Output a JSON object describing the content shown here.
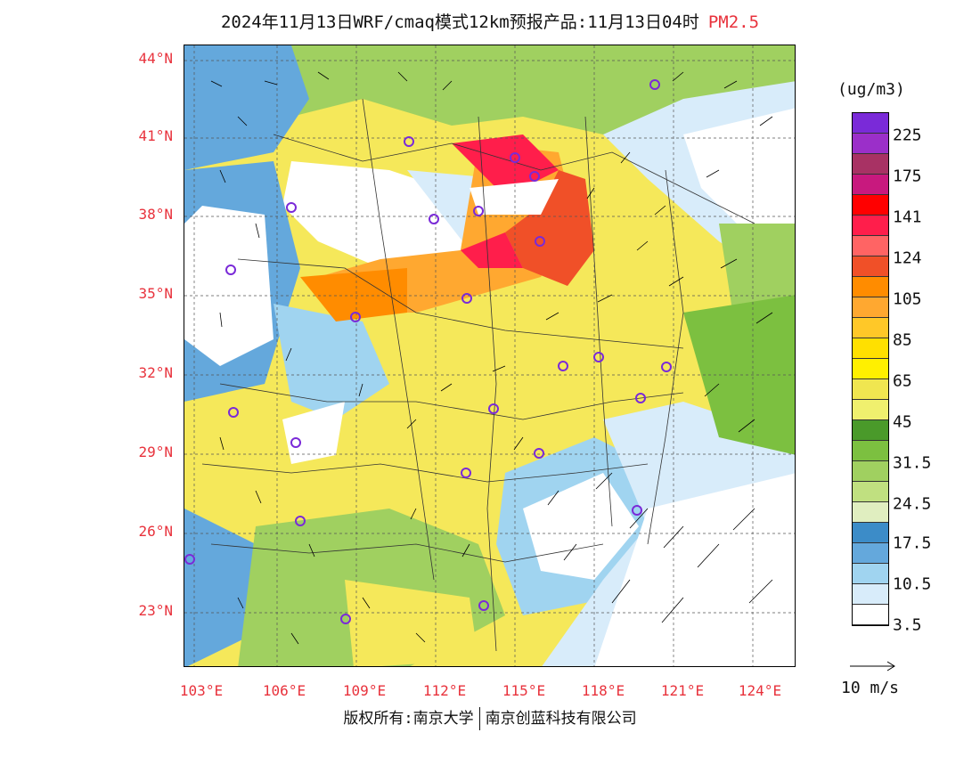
{
  "title": {
    "main": "2024年11月13日WRF/cmaq模式12km预报产品:11月13日04时",
    "pollutant": "PM2.5"
  },
  "axes": {
    "lat_labels": [
      "44°N",
      "41°N",
      "38°N",
      "35°N",
      "32°N",
      "29°N",
      "26°N",
      "23°N"
    ],
    "lon_labels": [
      "103°E",
      "106°E",
      "109°E",
      "112°E",
      "115°E",
      "118°E",
      "121°E",
      "124°E"
    ]
  },
  "legend": {
    "unit": "(ug/m3)",
    "labels": [
      "225",
      "175",
      "141",
      "124",
      "105",
      "85",
      "65",
      "45",
      "31.5",
      "24.5",
      "17.5",
      "10.5",
      "3.5"
    ],
    "colors": [
      "#7a2ad8",
      "#9b2fc9",
      "#a83264",
      "#c8197e",
      "#ff0000",
      "#ff1e4b",
      "#ff6464",
      "#f05028",
      "#ff8c00",
      "#ffa830",
      "#ffc828",
      "#ffe000",
      "#fff000",
      "#f0e650",
      "#f0f06e",
      "#4a9a2a",
      "#7cc040",
      "#a0d060",
      "#c0e080",
      "#e0eec0",
      "#3c8cc8",
      "#64a8dc",
      "#a0d4f0",
      "#d8ecfa",
      "#ffffff"
    ]
  },
  "wind": {
    "label": "10 m/s"
  },
  "copyright": {
    "left": "版权所有:南京大学",
    "right": "南京创蓝科技有限公司"
  }
}
